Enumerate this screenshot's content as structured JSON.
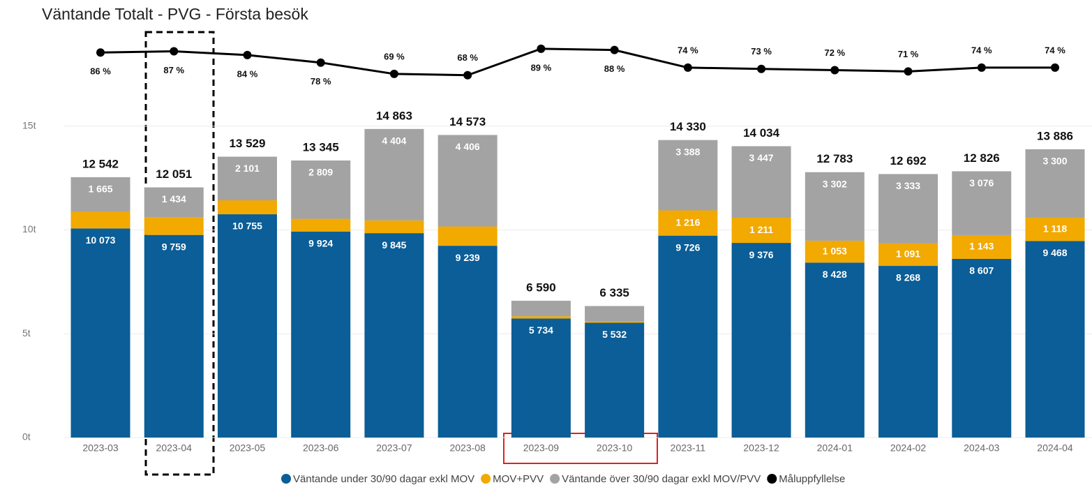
{
  "chart_data": {
    "type": "bar",
    "stacked": true,
    "title": "Väntande Totalt - PVG - Första besök",
    "categories": [
      "2023-03",
      "2023-04",
      "2023-05",
      "2023-06",
      "2023-07",
      "2023-08",
      "2023-09",
      "2023-10",
      "2023-11",
      "2023-12",
      "2024-01",
      "2024-02",
      "2024-03",
      "2024-04"
    ],
    "series": [
      {
        "name": "Väntande under 30/90 dagar exkl MOV",
        "color": "#0b5e97",
        "values": [
          10073,
          9759,
          10755,
          9924,
          9845,
          9239,
          5734,
          5532,
          9726,
          9376,
          8428,
          8268,
          8607,
          9468
        ],
        "value_labels": [
          "10 073",
          "9 759",
          "10 755",
          "9 924",
          "9 845",
          "9 239",
          "5 734",
          "5 532",
          "9 726",
          "9 376",
          "8 428",
          "8 268",
          "8 607",
          "9 468"
        ]
      },
      {
        "name": "MOV+PVV",
        "color": "#f2a900",
        "values": [
          804,
          858,
          673,
          612,
          614,
          928,
          110,
          60,
          1216,
          1211,
          1053,
          1091,
          1143,
          1118
        ],
        "value_labels": [
          null,
          null,
          null,
          null,
          null,
          null,
          null,
          null,
          "1 216",
          "1 211",
          "1 053",
          "1 091",
          "1 143",
          "1 118"
        ]
      },
      {
        "name": "Väntande över 30/90 dagar exkl MOV/PVV",
        "color": "#a3a3a3",
        "values": [
          1665,
          1434,
          2101,
          2809,
          4404,
          4406,
          746,
          743,
          3388,
          3447,
          3302,
          3333,
          3076,
          3300
        ],
        "value_labels": [
          "1 665",
          "1 434",
          "2 101",
          "2 809",
          "4 404",
          "4 406",
          null,
          null,
          "3 388",
          "3 447",
          "3 302",
          "3 333",
          "3 076",
          "3 300"
        ]
      },
      {
        "name": "Måluppfyllelse",
        "color": "#000000",
        "type": "line",
        "axis": "y2",
        "values": [
          86,
          87,
          84,
          78,
          69,
          68,
          89,
          88,
          74,
          73,
          72,
          71,
          74,
          74
        ],
        "value_labels": [
          "86 %",
          "87 %",
          "84 %",
          "78 %",
          "69 %",
          "68 %",
          "89 %",
          "88 %",
          "74 %",
          "73 %",
          "72 %",
          "71 %",
          "74 %",
          "74 %"
        ]
      }
    ],
    "totals": [
      12542,
      12051,
      13529,
      13345,
      14863,
      14573,
      6590,
      6335,
      14330,
      14034,
      12783,
      12692,
      12826,
      13886
    ],
    "total_labels": [
      "12 542",
      "12 051",
      "13 529",
      "13 345",
      "14 863",
      "14 573",
      "6 590",
      "6 335",
      "14 330",
      "14 034",
      "12 783",
      "12 692",
      "12 826",
      "13 886"
    ],
    "ylim": [
      0,
      20000
    ],
    "yticks": [
      {
        "value": 0,
        "label": "0t"
      },
      {
        "value": 5000,
        "label": "5t"
      },
      {
        "value": 10000,
        "label": "10t"
      },
      {
        "value": 15000,
        "label": "15t"
      }
    ],
    "y2lim": [
      -220,
      110
    ],
    "grid": true,
    "legend": "bottom"
  }
}
